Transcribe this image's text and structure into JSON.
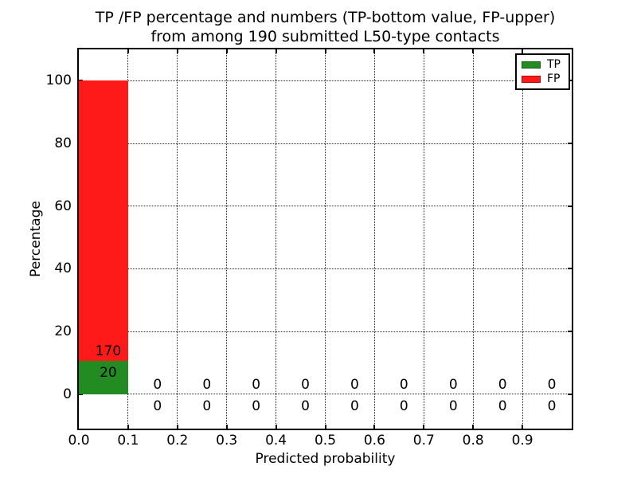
{
  "figure": {
    "title_line1": "TP /FP percentage and numbers (TP-bottom value, FP-upper)",
    "title_line2": "from among 190 submitted L50-type contacts"
  },
  "chart_data": {
    "type": "bar",
    "stacked": true,
    "title": "TP /FP percentage and numbers (TP-bottom value, FP-upper)\nfrom among 190 submitted L50-type contacts",
    "xlabel": "Predicted probability",
    "ylabel": "Percentage",
    "total_contacts": 190,
    "bin_width": 0.1,
    "bin_starts": [
      0.0,
      0.1,
      0.2,
      0.3,
      0.4,
      0.5,
      0.6,
      0.7,
      0.8,
      0.9
    ],
    "series": [
      {
        "name": "TP",
        "color": "#228b22",
        "counts": [
          20,
          0,
          0,
          0,
          0,
          0,
          0,
          0,
          0,
          0
        ]
      },
      {
        "name": "FP",
        "color": "#ff1a1a",
        "counts": [
          170,
          0,
          0,
          0,
          0,
          0,
          0,
          0,
          0,
          0
        ]
      }
    ],
    "first_bin_percentages": {
      "TP": 10.5,
      "FP": 89.5,
      "total": 100
    },
    "xlim": [
      0,
      1.0
    ],
    "ylim": [
      -11,
      110
    ],
    "xticks": [
      0.0,
      0.1,
      0.2,
      0.3,
      0.4,
      0.5,
      0.6,
      0.7,
      0.8,
      0.9
    ],
    "xtick_labels": [
      "0.0",
      "0.1",
      "0.2",
      "0.3",
      "0.4",
      "0.5",
      "0.6",
      "0.7",
      "0.8",
      "0.9"
    ],
    "yticks": [
      0,
      20,
      40,
      60,
      80,
      100
    ],
    "ytick_labels": [
      "0",
      "20",
      "40",
      "60",
      "80",
      "100"
    ],
    "grid": "dotted",
    "legend": {
      "position": "upper right",
      "entries": [
        {
          "label": "TP",
          "color": "#228b22"
        },
        {
          "label": "FP",
          "color": "#ff1a1a"
        }
      ]
    }
  }
}
